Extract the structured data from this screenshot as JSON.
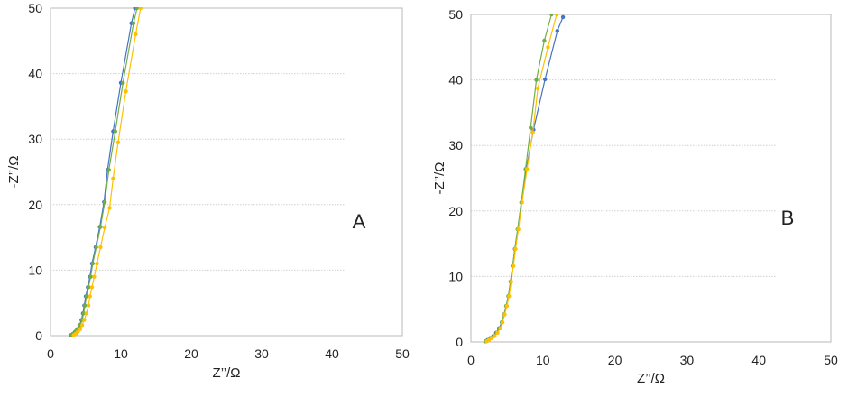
{
  "chart_data": [
    {
      "type": "scatter",
      "panel_label": "A",
      "xlabel": "Z’’/Ω",
      "ylabel": "-Z’’/Ω",
      "xlim": [
        0,
        50
      ],
      "ylim": [
        0,
        50
      ],
      "xticks": [
        "0",
        "10",
        "20",
        "30",
        "40",
        "50"
      ],
      "yticks": [
        "0",
        "10",
        "20",
        "30",
        "40",
        "50"
      ],
      "grid": "horizontal",
      "legend": "none",
      "series": [
        {
          "color": "#4472c4",
          "points": [
            [
              2.9,
              0.1
            ],
            [
              3.2,
              0.3
            ],
            [
              3.5,
              0.6
            ],
            [
              3.8,
              1.0
            ],
            [
              4.1,
              1.6
            ],
            [
              4.4,
              2.4
            ],
            [
              4.6,
              3.4
            ],
            [
              4.8,
              4.6
            ],
            [
              5.0,
              6.0
            ],
            [
              5.3,
              7.4
            ],
            [
              5.6,
              9.0
            ],
            [
              5.9,
              11.0
            ],
            [
              6.4,
              13.5
            ],
            [
              7.0,
              16.6
            ],
            [
              7.6,
              20.4
            ],
            [
              8.1,
              25.3
            ],
            [
              8.9,
              31.2
            ],
            [
              10.0,
              38.6
            ],
            [
              11.5,
              47.7
            ],
            [
              12.0,
              50.0
            ]
          ]
        },
        {
          "color": "#70ad47",
          "points": [
            [
              3.0,
              0.1
            ],
            [
              3.3,
              0.3
            ],
            [
              3.6,
              0.6
            ],
            [
              3.9,
              1.0
            ],
            [
              4.2,
              1.6
            ],
            [
              4.5,
              2.4
            ],
            [
              4.7,
              3.4
            ],
            [
              4.9,
              4.6
            ],
            [
              5.1,
              6.0
            ],
            [
              5.4,
              7.4
            ],
            [
              5.7,
              9.0
            ],
            [
              6.0,
              11.0
            ],
            [
              6.5,
              13.5
            ],
            [
              7.1,
              16.6
            ],
            [
              7.7,
              20.4
            ],
            [
              8.3,
              25.3
            ],
            [
              9.2,
              31.2
            ],
            [
              10.3,
              38.6
            ],
            [
              11.8,
              47.7
            ],
            [
              12.3,
              50.0
            ]
          ]
        },
        {
          "color": "#ffc000",
          "points": [
            [
              3.3,
              0.1
            ],
            [
              3.6,
              0.3
            ],
            [
              3.9,
              0.6
            ],
            [
              4.2,
              1.0
            ],
            [
              4.5,
              1.6
            ],
            [
              4.8,
              2.4
            ],
            [
              5.1,
              3.4
            ],
            [
              5.4,
              4.6
            ],
            [
              5.6,
              6.0
            ],
            [
              5.9,
              7.4
            ],
            [
              6.2,
              9.0
            ],
            [
              6.6,
              11.0
            ],
            [
              7.1,
              13.5
            ],
            [
              7.7,
              16.5
            ],
            [
              8.4,
              19.5
            ],
            [
              8.9,
              24.0
            ],
            [
              9.6,
              29.5
            ],
            [
              10.7,
              37.3
            ],
            [
              12.1,
              46.0
            ],
            [
              12.8,
              50.0
            ]
          ]
        }
      ]
    },
    {
      "type": "scatter",
      "panel_label": "B",
      "xlabel": "Z’’/Ω",
      "ylabel": "-Z’’/Ω",
      "xlim": [
        0,
        50
      ],
      "ylim": [
        0,
        50
      ],
      "xticks": [
        "0",
        "10",
        "20",
        "30",
        "40",
        "50"
      ],
      "yticks": [
        "0",
        "10",
        "20",
        "30",
        "40",
        "50"
      ],
      "grid": "horizontal",
      "legend": "none",
      "series": [
        {
          "color": "#4472c4",
          "points": [
            [
              2.0,
              0.1
            ],
            [
              2.3,
              0.3
            ],
            [
              2.7,
              0.6
            ],
            [
              3.1,
              0.9
            ],
            [
              3.5,
              1.4
            ],
            [
              3.9,
              2.1
            ],
            [
              4.3,
              3.0
            ],
            [
              4.6,
              4.2
            ],
            [
              4.9,
              5.5
            ],
            [
              5.2,
              7.0
            ],
            [
              5.5,
              9.2
            ],
            [
              5.8,
              11.6
            ],
            [
              6.1,
              14.2
            ],
            [
              6.5,
              17.2
            ],
            [
              7.0,
              21.3
            ],
            [
              7.7,
              26.4
            ],
            [
              8.7,
              32.4
            ],
            [
              10.3,
              40.1
            ],
            [
              12.0,
              47.5
            ],
            [
              12.8,
              49.6
            ]
          ]
        },
        {
          "color": "#70ad47",
          "points": [
            [
              2.1,
              0.1
            ],
            [
              2.4,
              0.3
            ],
            [
              2.8,
              0.6
            ],
            [
              3.2,
              0.9
            ],
            [
              3.6,
              1.4
            ],
            [
              4.0,
              2.1
            ],
            [
              4.3,
              3.0
            ],
            [
              4.6,
              4.2
            ],
            [
              4.9,
              5.5
            ],
            [
              5.2,
              7.0
            ],
            [
              5.5,
              9.2
            ],
            [
              5.8,
              11.6
            ],
            [
              6.1,
              14.2
            ],
            [
              6.5,
              17.2
            ],
            [
              7.0,
              21.3
            ],
            [
              7.6,
              26.4
            ],
            [
              8.3,
              32.7
            ],
            [
              9.1,
              40.0
            ],
            [
              10.2,
              46.0
            ],
            [
              11.2,
              50.0
            ]
          ]
        },
        {
          "color": "#ffc000",
          "points": [
            [
              2.2,
              0.1
            ],
            [
              2.5,
              0.3
            ],
            [
              2.9,
              0.6
            ],
            [
              3.3,
              0.9
            ],
            [
              3.7,
              1.4
            ],
            [
              4.1,
              2.1
            ],
            [
              4.4,
              3.0
            ],
            [
              4.7,
              4.2
            ],
            [
              5.0,
              5.5
            ],
            [
              5.3,
              7.0
            ],
            [
              5.6,
              9.2
            ],
            [
              5.9,
              11.6
            ],
            [
              6.2,
              14.2
            ],
            [
              6.6,
              17.2
            ],
            [
              7.1,
              21.3
            ],
            [
              7.8,
              26.4
            ],
            [
              8.6,
              32.0
            ],
            [
              9.3,
              38.7
            ],
            [
              10.7,
              45.0
            ],
            [
              11.9,
              50.0
            ]
          ]
        }
      ]
    }
  ]
}
